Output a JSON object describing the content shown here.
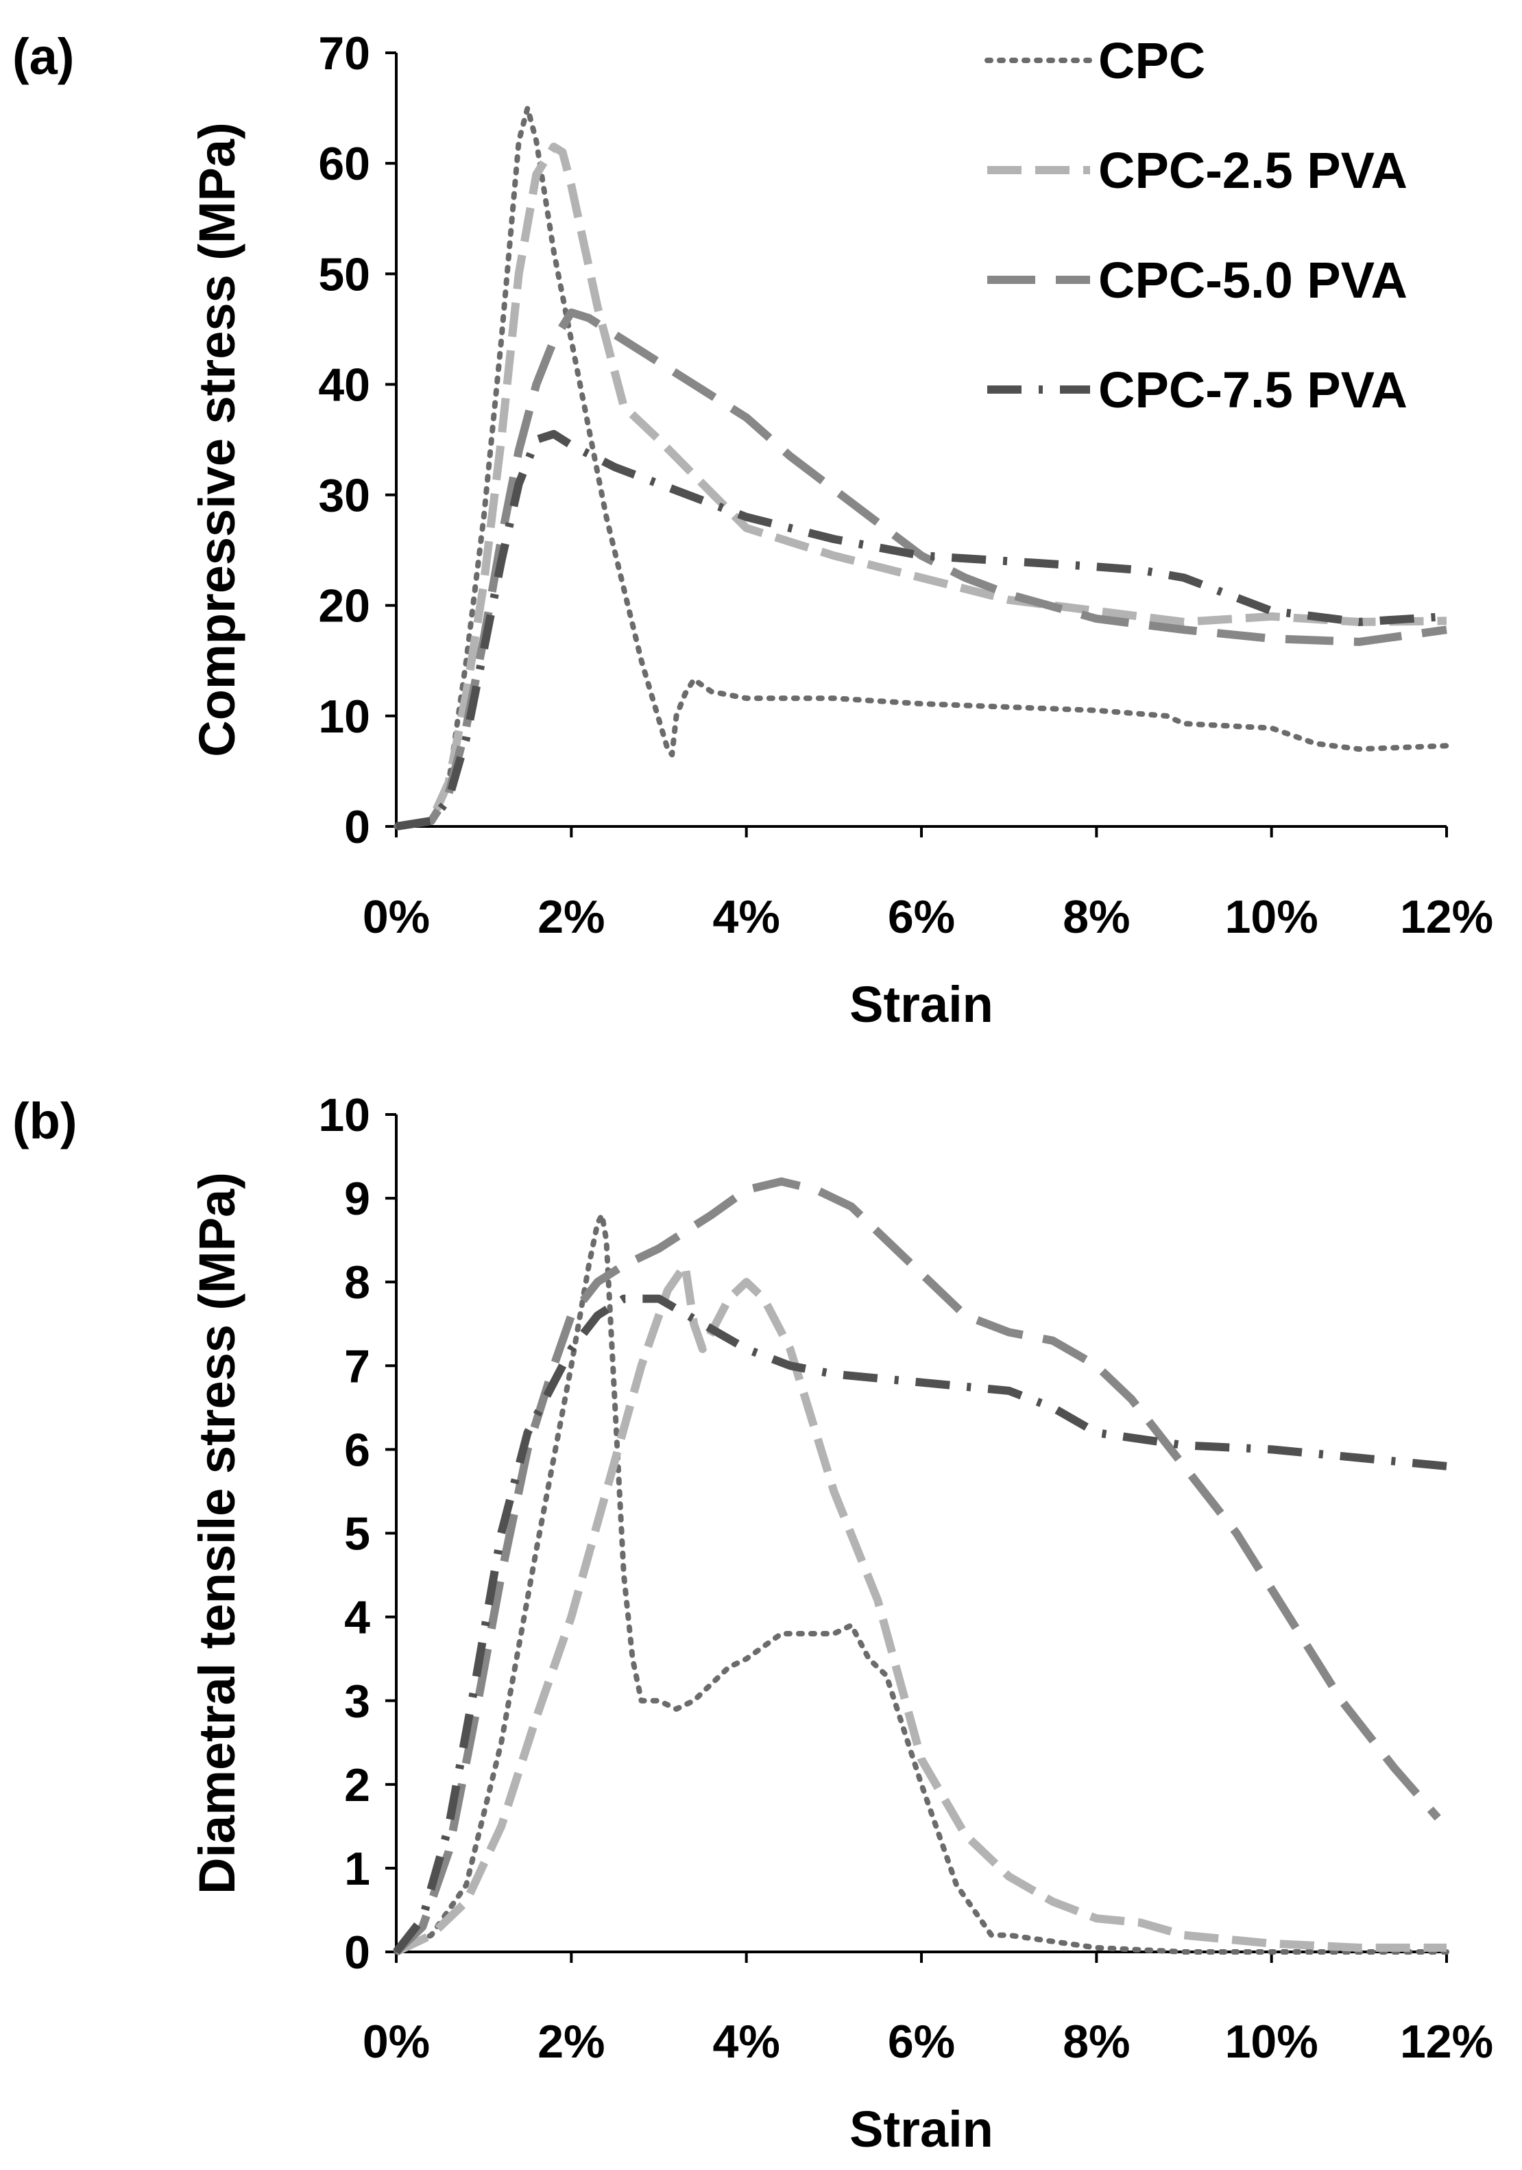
{
  "styles": {
    "CPC": {
      "color": "#6b6b6b",
      "dash": "5 13",
      "width": 8
    },
    "CPC-2.5 PVA": {
      "color": "#b3b3b3",
      "dash": "50 20",
      "width": 12
    },
    "CPC-5.0 PVA": {
      "color": "#878787",
      "dash": "70 30",
      "width": 12
    },
    "CPC-7.5 PVA": {
      "color": "#505050",
      "dash": "50 25 6 25",
      "width": 12
    }
  },
  "legend": [
    "CPC",
    "CPC-2.5 PVA",
    "CPC-5.0 PVA",
    "CPC-7.5 PVA"
  ],
  "chart_data": [
    {
      "type": "line",
      "panel_label": "(a)",
      "xlabel": "Strain",
      "ylabel": "Compressive stress (MPa)",
      "xlim": [
        0,
        12
      ],
      "ylim": [
        0,
        70
      ],
      "xticks": [
        0,
        2,
        4,
        6,
        8,
        10,
        12
      ],
      "xtick_labels": [
        "0%",
        "2%",
        "4%",
        "6%",
        "8%",
        "10%",
        "12%"
      ],
      "yticks": [
        0,
        10,
        20,
        30,
        40,
        50,
        60,
        70
      ],
      "ytick_labels": [
        "0",
        "10",
        "20",
        "30",
        "40",
        "50",
        "60",
        "70"
      ],
      "legend_position": "top-right",
      "series": [
        {
          "name": "CPC",
          "x": [
            0,
            0.4,
            0.6,
            0.8,
            1.0,
            1.2,
            1.4,
            1.5,
            1.6,
            1.8,
            2.0,
            2.4,
            2.8,
            3.1,
            3.15,
            3.2,
            3.3,
            3.4,
            3.6,
            4.0,
            5.0,
            6.0,
            7.0,
            8.0,
            8.8,
            9.0,
            10.0,
            10.5,
            11.0,
            12.0
          ],
          "y": [
            0,
            0.5,
            4,
            15,
            28,
            44,
            62,
            65,
            62,
            52,
            44,
            28,
            15,
            7,
            6.5,
            10,
            12,
            13.3,
            12.2,
            11.6,
            11.6,
            11.1,
            10.8,
            10.5,
            10,
            9.3,
            8.9,
            7.5,
            7,
            7.3
          ]
        },
        {
          "name": "CPC-2.5 PVA",
          "x": [
            0,
            0.4,
            0.6,
            0.8,
            1.0,
            1.2,
            1.4,
            1.6,
            1.8,
            1.9,
            2.0,
            2.3,
            2.6,
            3.0,
            3.5,
            4.0,
            5.0,
            6.0,
            7.0,
            8.0,
            9.0,
            10.0,
            11.0,
            12.0
          ],
          "y": [
            0,
            0.5,
            4,
            12,
            22,
            35,
            50,
            59,
            61.5,
            61,
            58,
            47,
            38,
            35,
            31,
            27,
            24.5,
            22.5,
            20.5,
            19.5,
            18.5,
            19,
            18.5,
            18.6
          ]
        },
        {
          "name": "CPC-5.0 PVA",
          "x": [
            0,
            0.4,
            0.6,
            0.8,
            1.0,
            1.2,
            1.4,
            1.6,
            1.8,
            2.0,
            2.2,
            2.5,
            3.0,
            3.5,
            4.0,
            4.5,
            5.0,
            5.5,
            6.0,
            6.5,
            7.0,
            8.0,
            9.0,
            10.0,
            11.0,
            12.0
          ],
          "y": [
            0,
            0.5,
            3,
            9,
            17,
            26,
            34,
            40,
            44,
            46.5,
            46,
            44.5,
            42,
            39.5,
            37,
            33.5,
            30.5,
            27.5,
            24.5,
            22.5,
            21,
            18.8,
            17.8,
            17,
            16.7,
            17.8
          ]
        },
        {
          "name": "CPC-7.5 PVA",
          "x": [
            0,
            0.4,
            0.6,
            0.8,
            1.0,
            1.2,
            1.4,
            1.6,
            1.8,
            2.0,
            2.5,
            3.0,
            4.0,
            5.0,
            6.0,
            7.0,
            8.0,
            8.5,
            9.0,
            9.5,
            10.0,
            11.0,
            12.0
          ],
          "y": [
            0,
            0.5,
            2.5,
            8,
            16,
            24,
            31,
            35,
            35.5,
            34.5,
            32.5,
            31,
            28,
            26,
            24.5,
            24,
            23.5,
            23.2,
            22.5,
            21,
            19.5,
            18.5,
            19
          ]
        }
      ]
    },
    {
      "type": "line",
      "panel_label": "(b)",
      "xlabel": "Strain",
      "ylabel": "Diametral tensile stress (MPa)",
      "xlim": [
        0,
        12
      ],
      "ylim": [
        0,
        10
      ],
      "xticks": [
        0,
        2,
        4,
        6,
        8,
        10,
        12
      ],
      "xtick_labels": [
        "0%",
        "2%",
        "4%",
        "6%",
        "8%",
        "10%",
        "12%"
      ],
      "yticks": [
        0,
        1,
        2,
        3,
        4,
        5,
        6,
        7,
        8,
        9,
        10
      ],
      "ytick_labels": [
        "0",
        "1",
        "2",
        "3",
        "4",
        "5",
        "6",
        "7",
        "8",
        "9",
        "10"
      ],
      "series": [
        {
          "name": "CPC",
          "x": [
            0,
            0.4,
            0.8,
            1.2,
            1.6,
            2.0,
            2.2,
            2.3,
            2.35,
            2.4,
            2.5,
            2.6,
            2.7,
            2.8,
            3.0,
            3.2,
            3.4,
            3.6,
            3.8,
            4.0,
            4.4,
            4.8,
            5.0,
            5.2,
            5.4,
            5.6,
            6.0,
            6.4,
            6.8,
            7.0,
            8.0,
            9.0,
            10.0,
            11.0,
            12.0
          ],
          "y": [
            0,
            0.2,
            0.8,
            2.5,
            4.8,
            7.0,
            8.2,
            8.7,
            8.8,
            8.5,
            6.5,
            4.5,
            3.5,
            3.0,
            3.0,
            2.9,
            3.0,
            3.2,
            3.4,
            3.5,
            3.8,
            3.8,
            3.8,
            3.9,
            3.5,
            3.3,
            2.0,
            0.8,
            0.2,
            0.2,
            0.05,
            0,
            0,
            0,
            0
          ]
        },
        {
          "name": "CPC-2.5 PVA",
          "x": [
            0,
            0.4,
            0.8,
            1.2,
            1.6,
            2.0,
            2.4,
            2.8,
            3.1,
            3.3,
            3.4,
            3.5,
            3.6,
            3.8,
            4.0,
            4.2,
            4.5,
            5.0,
            5.5,
            6.0,
            6.5,
            7.0,
            7.5,
            8.0,
            8.5,
            9.0,
            10.0,
            11.0,
            12.0
          ],
          "y": [
            0,
            0.2,
            0.6,
            1.5,
            2.8,
            4.0,
            5.5,
            7.0,
            7.9,
            8.2,
            7.5,
            7.2,
            7.4,
            7.8,
            8.0,
            7.8,
            7.2,
            5.5,
            4.2,
            2.3,
            1.4,
            0.9,
            0.6,
            0.4,
            0.35,
            0.2,
            0.1,
            0.05,
            0.05
          ]
        },
        {
          "name": "CPC-5.0 PVA",
          "x": [
            0,
            0.3,
            0.6,
            0.9,
            1.2,
            1.5,
            1.8,
            2.0,
            2.3,
            2.6,
            3.0,
            3.3,
            3.6,
            4.0,
            4.4,
            4.8,
            5.2,
            5.6,
            6.0,
            6.5,
            7.0,
            7.5,
            8.0,
            8.4,
            9.0,
            9.6,
            10.2,
            10.8,
            11.4,
            11.9
          ],
          "y": [
            0,
            0.3,
            1.2,
            2.8,
            4.5,
            6.0,
            7.0,
            7.6,
            8.0,
            8.2,
            8.4,
            8.6,
            8.8,
            9.1,
            9.2,
            9.1,
            8.9,
            8.5,
            8.1,
            7.6,
            7.4,
            7.3,
            7.0,
            6.6,
            5.8,
            5.0,
            4.0,
            3.0,
            2.2,
            1.6
          ]
        },
        {
          "name": "CPC-7.5 PVA",
          "x": [
            0,
            0.3,
            0.6,
            0.9,
            1.2,
            1.5,
            1.8,
            2.0,
            2.3,
            2.6,
            3.0,
            3.5,
            4.0,
            4.5,
            5.0,
            5.5,
            6.0,
            6.5,
            7.0,
            7.5,
            8.0,
            9.0,
            10.0,
            11.0,
            12.0
          ],
          "y": [
            0,
            0.4,
            1.5,
            3.2,
            5.0,
            6.2,
            6.8,
            7.2,
            7.6,
            7.8,
            7.8,
            7.5,
            7.2,
            7.0,
            6.9,
            6.85,
            6.8,
            6.75,
            6.7,
            6.5,
            6.2,
            6.05,
            6.0,
            5.9,
            5.8
          ]
        }
      ]
    }
  ]
}
